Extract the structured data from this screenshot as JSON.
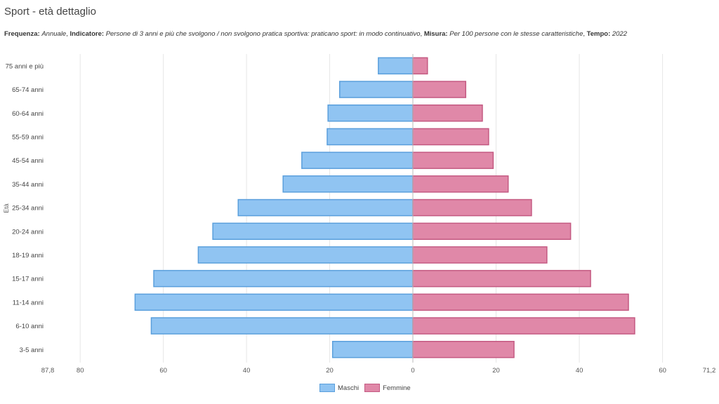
{
  "page": {
    "title": "Sport - età dettaglio",
    "meta": [
      {
        "label": "Frequenza:",
        "value": "Annuale"
      },
      {
        "label": "Indicatore:",
        "value": "Persone di 3 anni e più che svolgono / non svolgono pratica sportiva: praticano sport: in modo continuativo"
      },
      {
        "label": "Misura:",
        "value": "Per 100 persone con le stesse caratteristiche"
      },
      {
        "label": "Tempo:",
        "value": "2022"
      }
    ]
  },
  "chart_data": {
    "type": "bar",
    "orientation": "horizontal-population-pyramid",
    "ylabel": "Età",
    "categories": [
      "75 anni e più",
      "65-74 anni",
      "60-64 anni",
      "55-59 anni",
      "45-54 anni",
      "35-44 anni",
      "25-34 anni",
      "20-24 anni",
      "18-19 anni",
      "15-17 anni",
      "11-14 anni",
      "6-10 anni",
      "3-5 anni"
    ],
    "series": [
      {
        "name": "Maschi",
        "color": "#90c4f2",
        "stroke": "#5a9fdc",
        "side": "left",
        "values": [
          8.3,
          17.6,
          20.4,
          20.6,
          26.7,
          31.2,
          42.0,
          48.1,
          51.6,
          62.3,
          66.8,
          62.9,
          19.3
        ]
      },
      {
        "name": "Femmine",
        "color": "#e088a8",
        "stroke": "#c45a82",
        "side": "right",
        "values": [
          3.5,
          12.7,
          16.7,
          18.2,
          19.3,
          22.9,
          28.5,
          37.9,
          32.2,
          42.7,
          51.8,
          53.3,
          24.3
        ]
      }
    ],
    "xlim_left": 87.8,
    "xlim_right": 71.2,
    "x_ticks_left": [
      "87,8",
      "80",
      "60",
      "40",
      "20",
      "0"
    ],
    "x_ticks_right": [
      "20",
      "40",
      "60",
      "71,2"
    ],
    "grid": true,
    "legend_position": "bottom-center"
  }
}
